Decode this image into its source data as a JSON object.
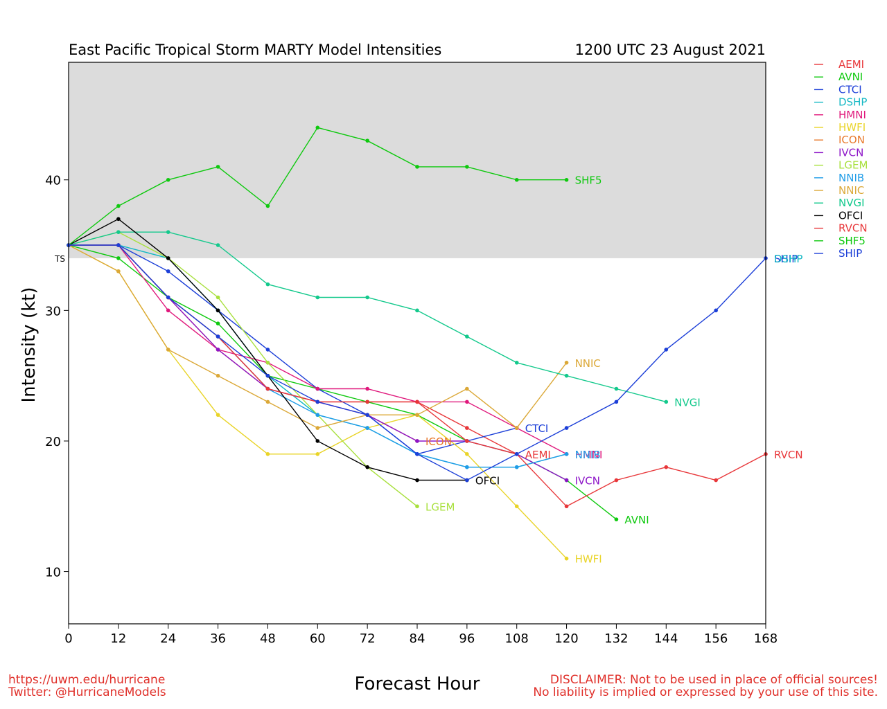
{
  "chart_data": {
    "type": "line",
    "title": "East Pacific Tropical Storm MARTY Model Intensities",
    "subtitle": "1200 UTC 23 August 2021",
    "xlabel": "Forecast Hour",
    "ylabel": "Intensity (kt)",
    "xlim": [
      0,
      168
    ],
    "ylim": [
      6,
      49
    ],
    "x_ticks": [
      0,
      12,
      24,
      36,
      48,
      60,
      72,
      84,
      96,
      108,
      120,
      132,
      144,
      156,
      168
    ],
    "y_ticks": [
      10,
      20,
      30,
      40
    ],
    "ts_threshold": 34,
    "ts_label": "TS",
    "shaded_region_color": "#dcdcdc",
    "legend_position": "right-outside",
    "series": [
      {
        "name": "AEMI",
        "color": "#e8373a",
        "end_label": "AEMI",
        "points": [
          [
            0,
            35
          ],
          [
            12,
            35
          ],
          [
            24,
            31
          ],
          [
            36,
            28
          ],
          [
            48,
            24
          ],
          [
            60,
            23
          ],
          [
            72,
            23
          ],
          [
            84,
            23
          ],
          [
            96,
            21
          ],
          [
            108,
            19
          ]
        ]
      },
      {
        "name": "AVNI",
        "color": "#0ec90e",
        "end_label": "AVNI",
        "points": [
          [
            0,
            35
          ],
          [
            12,
            34
          ],
          [
            24,
            31
          ],
          [
            36,
            29
          ],
          [
            48,
            25
          ],
          [
            60,
            24
          ],
          [
            72,
            23
          ],
          [
            84,
            22
          ],
          [
            96,
            20
          ],
          [
            108,
            19
          ],
          [
            120,
            17
          ],
          [
            132,
            14
          ]
        ]
      },
      {
        "name": "CTCI",
        "color": "#1c3fd8",
        "end_label": "CTCI",
        "points": [
          [
            0,
            35
          ],
          [
            12,
            35
          ],
          [
            24,
            33
          ],
          [
            36,
            30
          ],
          [
            48,
            27
          ],
          [
            60,
            24
          ],
          [
            72,
            22
          ],
          [
            84,
            19
          ],
          [
            96,
            20
          ],
          [
            108,
            21
          ]
        ]
      },
      {
        "name": "DSHP",
        "color": "#14b8c4",
        "end_label": "",
        "points": [
          [
            0,
            35
          ],
          [
            12,
            35
          ],
          [
            24,
            34
          ],
          [
            36,
            30
          ],
          [
            48,
            25
          ],
          [
            60,
            22
          ],
          [
            72,
            21
          ],
          [
            84,
            19
          ],
          [
            96,
            18
          ],
          [
            108,
            18
          ],
          [
            120,
            19
          ]
        ]
      },
      {
        "name": "HMNI",
        "color": "#e0187c",
        "end_label": "HMNI",
        "points": [
          [
            0,
            35
          ],
          [
            12,
            35
          ],
          [
            24,
            30
          ],
          [
            36,
            27
          ],
          [
            48,
            26
          ],
          [
            60,
            24
          ],
          [
            72,
            24
          ],
          [
            84,
            23
          ],
          [
            96,
            23
          ],
          [
            108,
            21
          ],
          [
            120,
            19
          ]
        ]
      },
      {
        "name": "HWFI",
        "color": "#e9d428",
        "end_label": "HWFI",
        "points": [
          [
            0,
            35
          ],
          [
            12,
            33
          ],
          [
            24,
            27
          ],
          [
            36,
            22
          ],
          [
            48,
            19
          ],
          [
            60,
            19
          ],
          [
            72,
            21
          ],
          [
            84,
            22
          ],
          [
            96,
            19
          ],
          [
            108,
            15
          ],
          [
            120,
            11
          ]
        ]
      },
      {
        "name": "ICON",
        "color": "#e8782a",
        "end_label": "ICON",
        "points": [
          [
            0,
            35
          ],
          [
            12,
            35
          ],
          [
            24,
            31
          ],
          [
            36,
            27
          ],
          [
            48,
            24
          ],
          [
            60,
            23
          ],
          [
            72,
            22
          ],
          [
            84,
            20
          ]
        ]
      },
      {
        "name": "IVCN",
        "color": "#8d14c8",
        "end_label": "IVCN",
        "points": [
          [
            0,
            35
          ],
          [
            12,
            35
          ],
          [
            24,
            31
          ],
          [
            36,
            27
          ],
          [
            48,
            24
          ],
          [
            60,
            23
          ],
          [
            72,
            22
          ],
          [
            84,
            20
          ],
          [
            96,
            20
          ],
          [
            108,
            19
          ],
          [
            120,
            17
          ]
        ]
      },
      {
        "name": "LGEM",
        "color": "#a8e03c",
        "end_label": "LGEM",
        "points": [
          [
            0,
            35
          ],
          [
            12,
            36
          ],
          [
            24,
            34
          ],
          [
            36,
            31
          ],
          [
            48,
            26
          ],
          [
            60,
            22
          ],
          [
            72,
            18
          ],
          [
            84,
            15
          ]
        ]
      },
      {
        "name": "NNIB",
        "color": "#1e9ce8",
        "end_label": "NNIB",
        "points": [
          [
            0,
            35
          ],
          [
            12,
            35
          ],
          [
            24,
            31
          ],
          [
            36,
            28
          ],
          [
            48,
            24
          ],
          [
            60,
            22
          ],
          [
            72,
            21
          ],
          [
            84,
            19
          ],
          [
            96,
            18
          ],
          [
            108,
            18
          ],
          [
            120,
            19
          ]
        ]
      },
      {
        "name": "NNIC",
        "color": "#dba837",
        "end_label": "NNIC",
        "points": [
          [
            0,
            35
          ],
          [
            12,
            33
          ],
          [
            24,
            27
          ],
          [
            36,
            25
          ],
          [
            48,
            23
          ],
          [
            60,
            21
          ],
          [
            72,
            22
          ],
          [
            84,
            22
          ],
          [
            96,
            24
          ],
          [
            108,
            21
          ],
          [
            120,
            26
          ]
        ]
      },
      {
        "name": "NVGI",
        "color": "#13c98c",
        "end_label": "NVGI",
        "points": [
          [
            0,
            35
          ],
          [
            12,
            36
          ],
          [
            24,
            36
          ],
          [
            36,
            35
          ],
          [
            48,
            32
          ],
          [
            60,
            31
          ],
          [
            72,
            31
          ],
          [
            84,
            30
          ],
          [
            96,
            28
          ],
          [
            108,
            26
          ],
          [
            120,
            25
          ],
          [
            132,
            24
          ],
          [
            144,
            23
          ]
        ]
      },
      {
        "name": "OFCI",
        "color": "#000000",
        "end_label": "OFCI",
        "points": [
          [
            0,
            35
          ],
          [
            12,
            37
          ],
          [
            24,
            34
          ],
          [
            36,
            30
          ],
          [
            48,
            25
          ],
          [
            60,
            20
          ],
          [
            72,
            18
          ],
          [
            84,
            17
          ],
          [
            96,
            17
          ]
        ]
      },
      {
        "name": "RVCN",
        "color": "#e8373a",
        "end_label": "RVCN",
        "points": [
          [
            0,
            35
          ],
          [
            12,
            35
          ],
          [
            24,
            31
          ],
          [
            36,
            28
          ],
          [
            48,
            24
          ],
          [
            60,
            23
          ],
          [
            72,
            23
          ],
          [
            84,
            23
          ],
          [
            96,
            20
          ],
          [
            108,
            19
          ],
          [
            120,
            15
          ],
          [
            132,
            17
          ],
          [
            144,
            18
          ],
          [
            156,
            17
          ],
          [
            168,
            19
          ]
        ]
      },
      {
        "name": "SHF5",
        "color": "#0ec90e",
        "end_label": "SHF5",
        "points": [
          [
            0,
            35
          ],
          [
            12,
            38
          ],
          [
            24,
            40
          ],
          [
            36,
            41
          ],
          [
            48,
            38
          ],
          [
            60,
            44
          ],
          [
            72,
            43
          ],
          [
            84,
            41
          ],
          [
            96,
            41
          ],
          [
            108,
            40
          ],
          [
            120,
            40
          ]
        ]
      },
      {
        "name": "SHIP",
        "color": "#1c3fd8",
        "end_label": "SHIP",
        "points": [
          [
            0,
            35
          ],
          [
            12,
            35
          ],
          [
            24,
            31
          ],
          [
            36,
            28
          ],
          [
            48,
            25
          ],
          [
            60,
            23
          ],
          [
            72,
            22
          ],
          [
            84,
            19
          ],
          [
            96,
            17
          ],
          [
            108,
            19
          ],
          [
            120,
            21
          ],
          [
            132,
            23
          ],
          [
            144,
            27
          ],
          [
            156,
            30
          ],
          [
            168,
            34
          ]
        ]
      }
    ],
    "extra_labels": [
      {
        "text": "DSHP",
        "x": 168,
        "y": 34,
        "color": "#14b8c4"
      }
    ]
  },
  "footer": {
    "left_line1": "https://uwm.edu/hurricane",
    "left_line2": "Twitter: @HurricaneModels",
    "right_line1": "DISCLAIMER: Not to be used in place of official sources!",
    "right_line2": "No liability is implied or expressed by your use of this site."
  }
}
